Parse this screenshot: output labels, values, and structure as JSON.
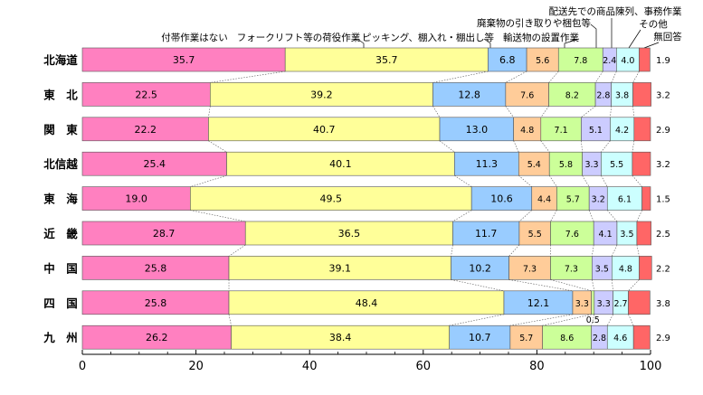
{
  "chart_data": {
    "type": "bar",
    "orientation": "horizontal",
    "stacked": true,
    "categories": [
      "北海道",
      "東　北",
      "関　東",
      "北信越",
      "東　海",
      "近　畿",
      "中　国",
      "四　国",
      "九　州"
    ],
    "series": [
      {
        "name": "付帯作業はない",
        "color": "#ff80c0",
        "values": [
          35.7,
          22.5,
          22.2,
          25.4,
          19.0,
          28.7,
          25.8,
          25.8,
          26.2
        ]
      },
      {
        "name": "フォークリフト等の荷役作業",
        "color": "#ffff99",
        "values": [
          35.7,
          39.2,
          40.7,
          40.1,
          49.5,
          36.5,
          39.1,
          48.4,
          38.4
        ]
      },
      {
        "name": "ピッキング、棚入れ・棚出し等",
        "color": "#99ccff",
        "values": [
          6.8,
          12.8,
          13.0,
          11.3,
          10.6,
          11.7,
          10.2,
          12.1,
          10.7
        ]
      },
      {
        "name": "輸送物の設置作業",
        "color": "#ffcc99",
        "values": [
          5.6,
          7.6,
          4.8,
          5.4,
          4.4,
          5.5,
          7.3,
          3.3,
          5.7
        ]
      },
      {
        "name": "廃棄物の引き取りや梱包等",
        "color": "#ccff99",
        "values": [
          7.8,
          8.2,
          7.1,
          5.8,
          5.7,
          7.6,
          7.3,
          0.5,
          8.6
        ]
      },
      {
        "name": "配送先での商品陳列、事務作業",
        "color": "#ccccff",
        "values": [
          2.4,
          2.8,
          5.1,
          3.3,
          3.2,
          4.1,
          3.5,
          3.3,
          2.8
        ]
      },
      {
        "name": "その他",
        "color": "#ccffff",
        "values": [
          4.0,
          3.8,
          4.2,
          5.5,
          6.1,
          3.5,
          4.8,
          2.7,
          4.6
        ]
      },
      {
        "name": "無回答",
        "color": "#ff6666",
        "values": [
          1.9,
          3.2,
          2.9,
          3.2,
          1.5,
          2.5,
          2.2,
          3.8,
          2.9
        ]
      }
    ],
    "xticks": [
      "0",
      "20",
      "40",
      "60",
      "80",
      "100"
    ],
    "xlim": [
      0,
      100
    ],
    "legend": "top, labels with leader lines"
  }
}
